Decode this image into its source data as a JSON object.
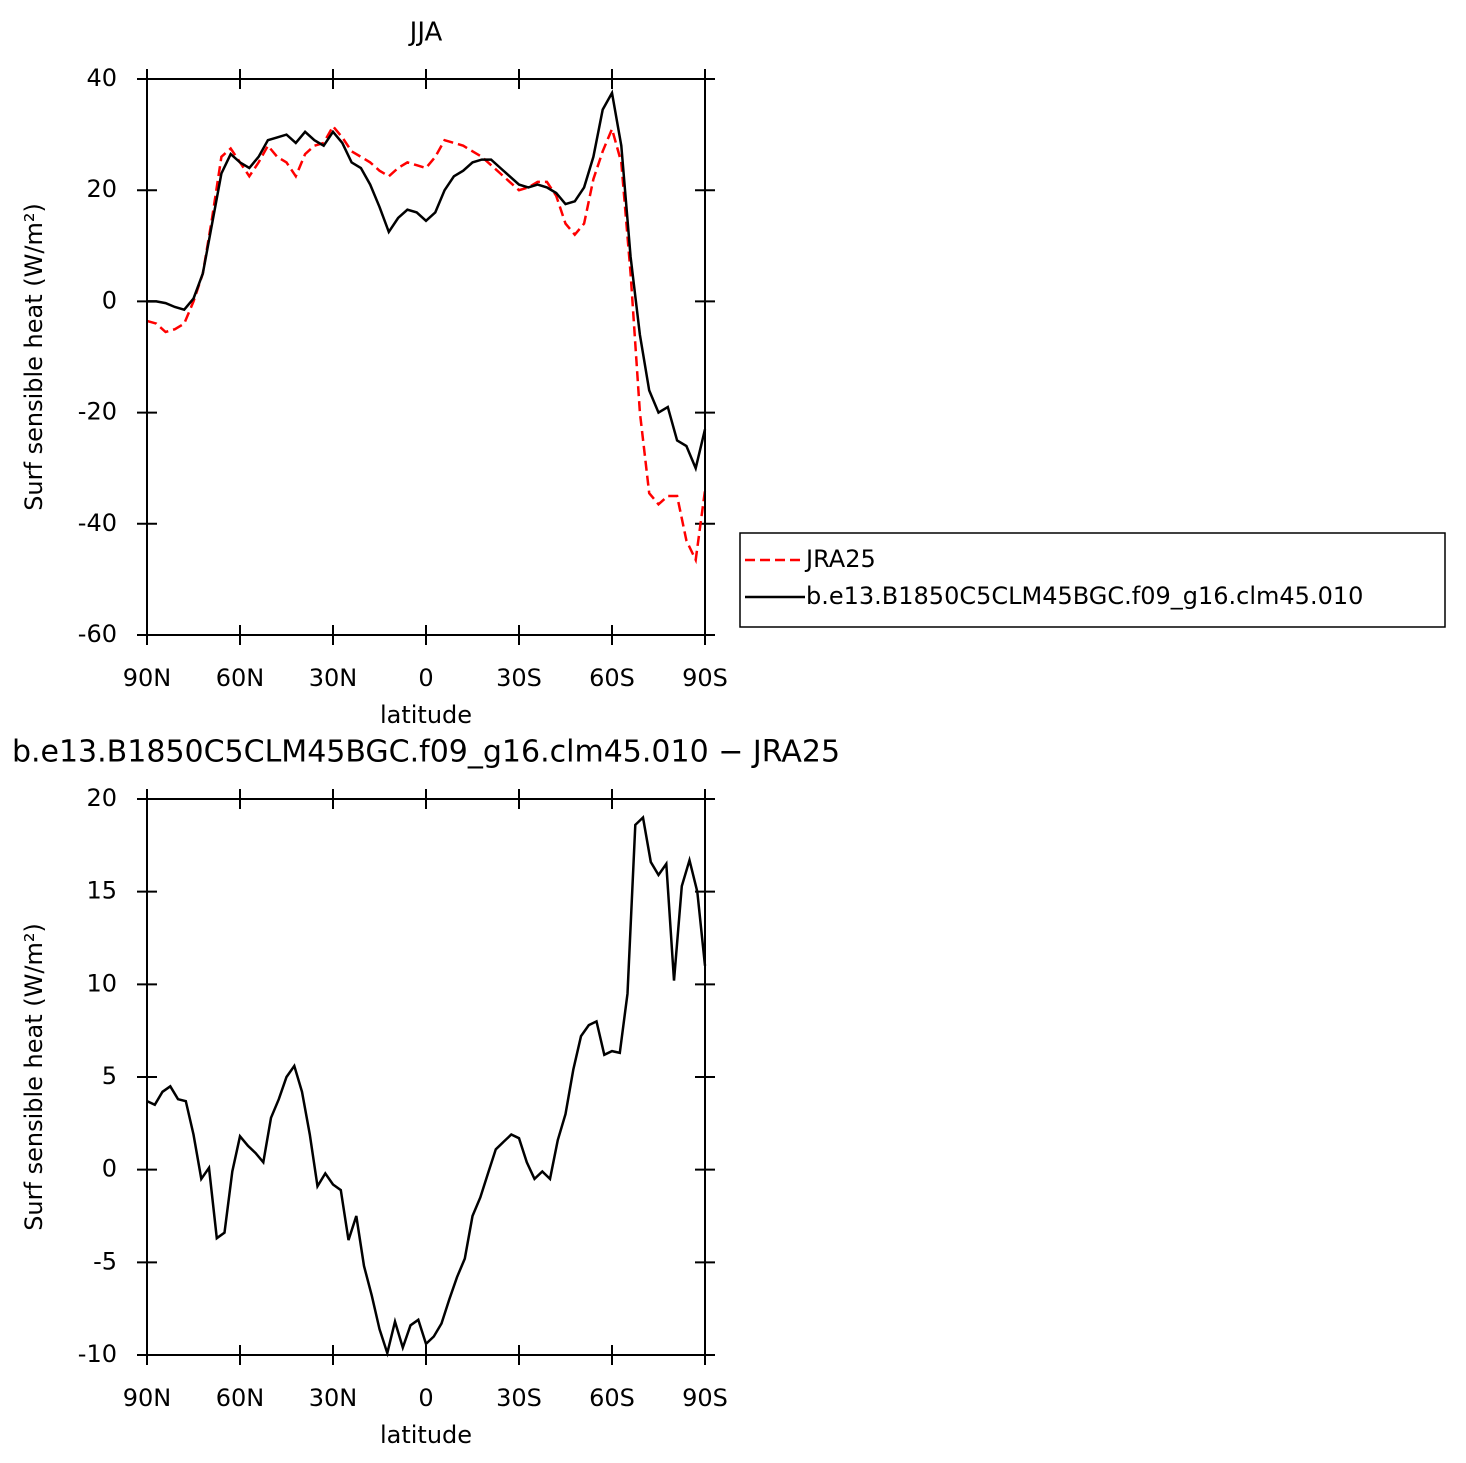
{
  "chart_data": [
    {
      "type": "line",
      "title": "JJA",
      "xlabel": "latitude",
      "ylabel": "Surf sensible heat (W/m²)",
      "xlim": [
        90,
        -90
      ],
      "ylim": [
        -60,
        40
      ],
      "xticks": [
        {
          "value": 90,
          "label": "90N"
        },
        {
          "value": 60,
          "label": "60N"
        },
        {
          "value": 30,
          "label": "30N"
        },
        0,
        {
          "value": -30,
          "label": "30S"
        },
        {
          "value": -60,
          "label": "60S"
        },
        {
          "value": -90,
          "label": "90S"
        }
      ],
      "yticks": [
        -60,
        -40,
        -20,
        0,
        20,
        40
      ],
      "legend": "right",
      "x": [
        90,
        87,
        84,
        81,
        78,
        75,
        72,
        69,
        66,
        63,
        60,
        57,
        54,
        51,
        48,
        45,
        42,
        39,
        36,
        33,
        30,
        27,
        24,
        21,
        18,
        15,
        12,
        9,
        6,
        3,
        0,
        -3,
        -6,
        -9,
        -12,
        -15,
        -18,
        -21,
        -24,
        -27,
        -30,
        -33,
        -36,
        -39,
        -42,
        -45,
        -48,
        -51,
        -54,
        -57,
        -60,
        -63,
        -66,
        -69,
        -72,
        -75,
        -78,
        -81,
        -84,
        -87,
        -90
      ],
      "series": [
        {
          "name": "JRA25",
          "color": "#ff0000",
          "dash": true,
          "values": [
            -3.5,
            -4,
            -5.5,
            -5,
            -4,
            0,
            5,
            15,
            26,
            27.5,
            25,
            22.5,
            25,
            28,
            26,
            25,
            22.5,
            26.5,
            28,
            28.5,
            31.5,
            29.5,
            27,
            26,
            25,
            23.5,
            22.5,
            24,
            25,
            24.5,
            24,
            26,
            29,
            28.5,
            28,
            27,
            26,
            24.5,
            23,
            21.5,
            20,
            20.5,
            21.5,
            21.5,
            19,
            14,
            12,
            14,
            22,
            27,
            31,
            25,
            5,
            -20,
            -34.5,
            -36.5,
            -35,
            -35,
            -43,
            -46.5,
            -34
          ]
        },
        {
          "name": "b.e13.B1850C5CLM45BGC.f09_g16.clm45.010",
          "color": "#000000",
          "dash": false,
          "values": [
            0,
            0,
            -0.3,
            -1,
            -1.5,
            0.5,
            5,
            14,
            23,
            26.5,
            25,
            24,
            26,
            29,
            29.5,
            30,
            28.5,
            30.5,
            29,
            28,
            30.5,
            28.5,
            25,
            24,
            21,
            17,
            12.5,
            15,
            16.5,
            16,
            14.5,
            16,
            20,
            22.5,
            23.5,
            25,
            25.5,
            25.5,
            24,
            22.5,
            21,
            20.5,
            21,
            20.5,
            19.5,
            17.5,
            18,
            20.5,
            26,
            34.5,
            37.5,
            28,
            8,
            -6,
            -16,
            -20,
            -19,
            -25,
            -26,
            -30,
            -23
          ]
        }
      ]
    },
    {
      "type": "line",
      "title": "b.e13.B1850C5CLM45BGC.f09_g16.clm45.010 − JRA25",
      "xlabel": "latitude",
      "ylabel": "Surf sensible heat (W/m²)",
      "xlim": [
        90,
        -90
      ],
      "ylim": [
        -10,
        20
      ],
      "xticks": [
        {
          "value": 90,
          "label": "90N"
        },
        {
          "value": 60,
          "label": "60N"
        },
        {
          "value": 30,
          "label": "30N"
        },
        0,
        {
          "value": -30,
          "label": "30S"
        },
        {
          "value": -60,
          "label": "60S"
        },
        {
          "value": -90,
          "label": "90S"
        }
      ],
      "yticks": [
        -10,
        -5,
        0,
        5,
        10,
        15,
        20
      ],
      "x": [
        90,
        87.5,
        85,
        82.5,
        80,
        77.5,
        75,
        72.5,
        70,
        67.5,
        65,
        62.5,
        60,
        57.5,
        55,
        52.5,
        50,
        47.5,
        45,
        42.5,
        40,
        37.5,
        35,
        32.5,
        30,
        27.5,
        25,
        22.5,
        20,
        17.5,
        15,
        12.5,
        10,
        7.5,
        5,
        2.5,
        0,
        -2.5,
        -5,
        -7.5,
        -10,
        -12.5,
        -15,
        -17.5,
        -20,
        -22.5,
        -25,
        -27.5,
        -30,
        -32.5,
        -35,
        -37.5,
        -40,
        -42.5,
        -45,
        -47.5,
        -50,
        -52.5,
        -55,
        -57.5,
        -60,
        -62.5,
        -65,
        -67.5,
        -70,
        -72.5,
        -75,
        -77.5,
        -80,
        -82.5,
        -85,
        -87.5,
        -90
      ],
      "series": [
        {
          "color": "#000000",
          "dash": false,
          "values": [
            3.7,
            3.5,
            4.2,
            4.5,
            3.8,
            3.7,
            1.9,
            -0.5,
            0.1,
            -3.7,
            -3.4,
            -0.1,
            1.8,
            1.3,
            0.9,
            0.4,
            2.8,
            3.8,
            5.0,
            5.6,
            4.2,
            1.9,
            -0.9,
            -0.2,
            -0.8,
            -1.1,
            -3.8,
            -2.5,
            -5.2,
            -6.8,
            -8.6,
            -9.9,
            -8.2,
            -9.6,
            -8.4,
            -8.1,
            -9.4,
            -9.0,
            -8.3,
            -7.0,
            -5.8,
            -4.8,
            -2.5,
            -1.5,
            -0.2,
            1.1,
            1.5,
            1.9,
            1.7,
            0.4,
            -0.5,
            -0.1,
            -0.5,
            1.6,
            3.0,
            5.4,
            7.2,
            7.8,
            8.0,
            6.2,
            6.4,
            6.3,
            9.5,
            18.6,
            19.0,
            16.6,
            15.9,
            16.5,
            10.2,
            15.3,
            16.7,
            15.0,
            11.0
          ]
        }
      ]
    }
  ]
}
